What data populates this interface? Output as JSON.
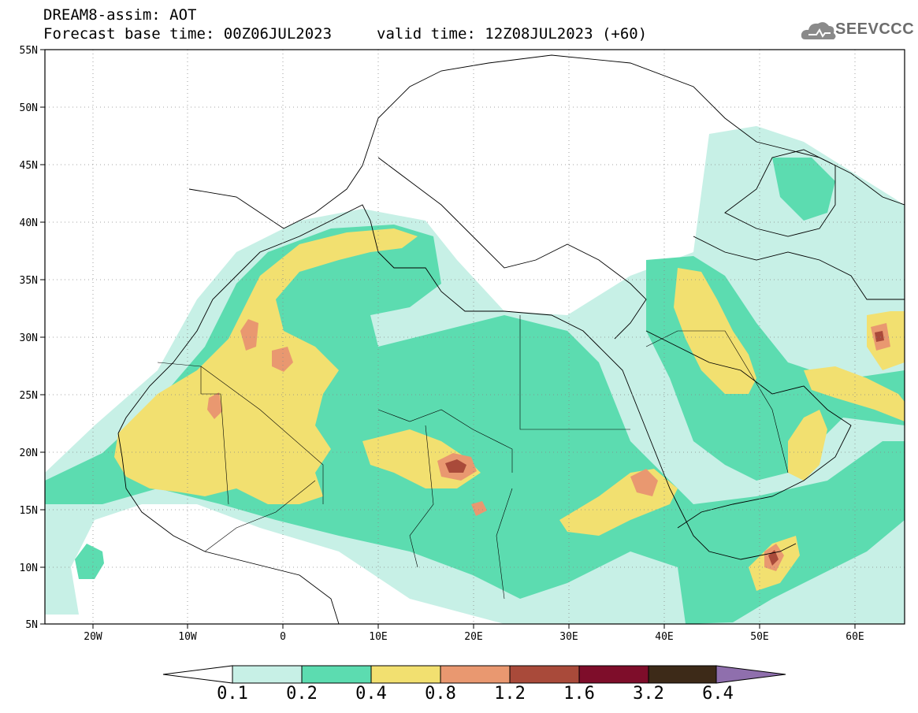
{
  "header": {
    "title": "DREAM8-assim: AOT",
    "base_time": "Forecast base time: 00Z06JUL2023",
    "valid_time": "valid time: 12Z08JUL2023 (+60)"
  },
  "logo": {
    "text": "SEEVCCC",
    "icon": "cloud-logo-icon"
  },
  "map": {
    "lon_range": [
      -25,
      65
    ],
    "lat_range": [
      5,
      55
    ],
    "lat_labels": [
      "55N",
      "50N",
      "45N",
      "40N",
      "35N",
      "30N",
      "25N",
      "20N",
      "15N",
      "10N",
      "5N"
    ],
    "lon_labels": [
      "20W",
      "10W",
      "0",
      "10E",
      "20E",
      "30E",
      "40E",
      "50E",
      "60E"
    ],
    "grid": "dotted"
  },
  "colorbar": {
    "labels": [
      "0.1",
      "0.2",
      "0.4",
      "0.8",
      "1.2",
      "1.6",
      "3.2",
      "6.4"
    ],
    "colors": [
      "#c7f0e6",
      "#5cdcb0",
      "#f2e070",
      "#e99870",
      "#a94a3a",
      "#7e0d2a",
      "#3d2a18",
      "#8f6fad"
    ]
  }
}
